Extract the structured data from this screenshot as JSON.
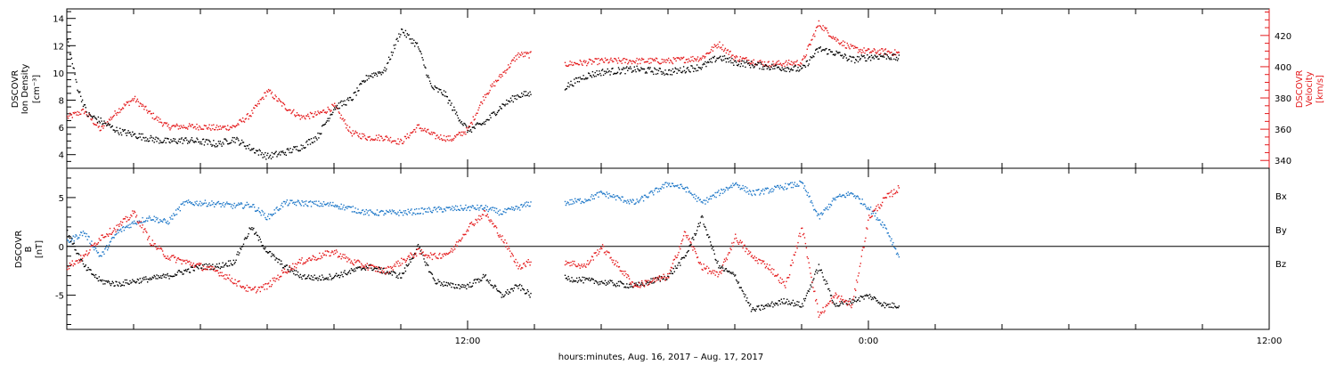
{
  "colors": {
    "black": "#000000",
    "red": "#e41a1c",
    "blue": "#1f78c8"
  },
  "xaxis": {
    "label": "hours:minutes, Aug. 16, 2017 – Aug. 17, 2017",
    "range_hours": [
      0,
      36
    ],
    "ticks": [
      {
        "h": 12,
        "label": "12:00"
      },
      {
        "h": 24,
        "label": "0:00"
      },
      {
        "h": 36,
        "label": "12:00"
      }
    ]
  },
  "chart_data": [
    {
      "type": "scatter",
      "panel": "top",
      "left_axis": {
        "label_lines": [
          "DSCOVR",
          "Ion Density",
          "[cm⁻³]"
        ],
        "range": [
          3,
          14.7
        ],
        "tick_labels": [
          "4",
          "6",
          "8",
          "10",
          "12",
          "14"
        ]
      },
      "right_axis": {
        "label_lines": [
          "DSCOVR",
          "Velocity",
          "[km/s]"
        ],
        "range": [
          335,
          437
        ],
        "tick_labels": [
          "340",
          "360",
          "380",
          "400",
          "420"
        ]
      },
      "gap_hours": [
        13.9,
        14.9
      ],
      "data_end_hours": 24.9,
      "series": [
        {
          "axis": "left",
          "color": "black",
          "x": [
            0,
            0.3,
            0.6,
            1.0,
            1.5,
            2.0,
            2.5,
            3.0,
            3.5,
            4.0,
            4.5,
            5.0,
            5.5,
            6.0,
            6.5,
            7.0,
            7.5,
            8.0,
            8.5,
            9.0,
            9.5,
            10.0,
            10.5,
            10.9,
            11.3,
            11.6,
            12.0,
            12.5,
            13.0,
            13.5,
            13.9,
            14.9,
            15.5,
            16.0,
            17.0,
            18.0,
            19.0,
            19.5,
            20.0,
            21.0,
            22.0,
            22.5,
            23.0,
            23.5,
            24.0,
            24.5,
            24.9
          ],
          "y": [
            12.5,
            9,
            7,
            6.5,
            5.8,
            5.5,
            5.2,
            5.0,
            5.1,
            5.0,
            4.8,
            5.2,
            4.5,
            3.9,
            4.2,
            4.6,
            5.4,
            7.5,
            8.1,
            9.8,
            10.2,
            13.2,
            12.0,
            9.0,
            8.5,
            7.2,
            5.8,
            6.4,
            7.6,
            8.4,
            8.5,
            9.0,
            9.8,
            10.1,
            10.3,
            10.1,
            10.5,
            11.2,
            10.8,
            10.5,
            10.3,
            11.8,
            11.5,
            11.0,
            11.2,
            11.3,
            11.1
          ]
        },
        {
          "axis": "right",
          "color": "red",
          "x": [
            0,
            0.5,
            1.0,
            1.5,
            2.0,
            2.5,
            3.0,
            3.5,
            4.0,
            4.5,
            5.0,
            5.5,
            6.0,
            6.5,
            7.0,
            7.5,
            8.0,
            8.5,
            9.0,
            9.5,
            10.0,
            10.5,
            11.0,
            11.5,
            12.0,
            12.5,
            13.0,
            13.5,
            13.9,
            14.9,
            15.5,
            16.0,
            17.0,
            18.0,
            19.0,
            19.5,
            20.0,
            21.0,
            22.0,
            22.5,
            23.0,
            23.5,
            24.0,
            24.5,
            24.9
          ],
          "y": [
            368,
            372,
            360,
            372,
            380,
            370,
            362,
            362,
            362,
            361,
            362,
            370,
            385,
            375,
            368,
            370,
            375,
            358,
            355,
            355,
            352,
            362,
            356,
            354,
            360,
            382,
            395,
            408,
            408,
            402,
            403,
            404,
            404,
            404,
            406,
            415,
            406,
            402,
            403,
            428,
            418,
            412,
            410,
            410,
            409
          ]
        }
      ]
    },
    {
      "type": "scatter",
      "panel": "bottom",
      "left_axis": {
        "label_lines": [
          "DSCOVR",
          "B",
          "[nT]"
        ],
        "range": [
          -8.5,
          8
        ],
        "tick_labels": [
          "-5",
          "0",
          "5"
        ]
      },
      "zero_line": true,
      "gap_hours": [
        13.9,
        14.9
      ],
      "data_end_hours": 24.9,
      "legend": [
        "Bx",
        "By",
        "Bz"
      ],
      "series": [
        {
          "name": "Bx",
          "color": "black",
          "x": [
            0,
            0.5,
            1.0,
            1.5,
            2.0,
            3.0,
            4.0,
            4.5,
            5.0,
            5.5,
            6.0,
            6.5,
            7.0,
            7.5,
            8.0,
            8.5,
            9.0,
            9.5,
            10.0,
            10.5,
            11.0,
            11.5,
            12.0,
            12.5,
            13.0,
            13.5,
            13.9,
            14.9,
            16.0,
            17.0,
            18.0,
            18.5,
            19.0,
            19.5,
            20.0,
            20.5,
            21.0,
            21.5,
            22.0,
            22.5,
            23.0,
            23.5,
            24.0,
            24.5,
            24.9
          ],
          "y": [
            1.5,
            -2,
            -3.5,
            -3.8,
            -3.5,
            -3,
            -2,
            -2,
            -1.5,
            2,
            -0.5,
            -2,
            -3,
            -3.2,
            -3,
            -2.5,
            -2,
            -2.5,
            -3,
            0,
            -3.5,
            -4,
            -4,
            -3,
            -5,
            -4,
            -5,
            -3.2,
            -3.6,
            -4,
            -3,
            -1,
            3,
            -2,
            -3,
            -6.5,
            -6,
            -5.5,
            -6,
            -2,
            -6,
            -5.5,
            -5,
            -6,
            -6
          ]
        },
        {
          "name": "By",
          "color": "blue",
          "x": [
            0,
            0.5,
            1.0,
            1.5,
            2.0,
            2.5,
            3.0,
            3.5,
            4.0,
            4.5,
            5.0,
            5.5,
            6.0,
            6.5,
            7.0,
            8.0,
            9.0,
            10.0,
            11.0,
            12.0,
            12.5,
            13.0,
            13.5,
            13.9,
            14.9,
            15.5,
            16.0,
            17.0,
            18.0,
            18.5,
            19.0,
            19.5,
            20.0,
            20.5,
            21.0,
            21.5,
            22.0,
            22.5,
            23.0,
            23.5,
            24.0,
            24.5,
            24.9
          ],
          "y": [
            0.5,
            1.5,
            -1,
            1.5,
            2.5,
            3,
            2.5,
            4.5,
            4.5,
            4.4,
            4.2,
            4.3,
            3,
            4.5,
            4.5,
            4.3,
            3.5,
            3.5,
            3.8,
            4,
            4,
            3.5,
            4,
            4.5,
            4.5,
            4.8,
            5.5,
            4.5,
            6.5,
            6,
            4.5,
            5.5,
            6.5,
            5.5,
            5.8,
            6.2,
            6.5,
            3,
            5,
            5.5,
            4,
            2,
            -1
          ]
        },
        {
          "name": "Bz",
          "color": "red",
          "x": [
            0,
            0.5,
            1.0,
            1.5,
            2.0,
            2.5,
            3.0,
            3.5,
            4.0,
            4.5,
            5.0,
            5.5,
            6.0,
            6.5,
            7.0,
            7.5,
            8.0,
            8.5,
            9.0,
            9.5,
            10.0,
            10.5,
            11.0,
            11.5,
            12.0,
            12.5,
            13.0,
            13.5,
            13.9,
            14.9,
            15.5,
            16.0,
            17.0,
            17.5,
            18.0,
            18.5,
            19.0,
            19.5,
            20.0,
            20.5,
            21.0,
            21.5,
            22.0,
            22.5,
            23.0,
            23.5,
            24.0,
            24.5,
            24.9
          ],
          "y": [
            -2,
            -1,
            1,
            2,
            3.5,
            0.5,
            -1,
            -1.5,
            -2,
            -2.5,
            -3.5,
            -4.5,
            -4,
            -2.5,
            -1.5,
            -1,
            -0.5,
            -1.5,
            -2,
            -2.5,
            -1.5,
            -0.5,
            -1,
            -0.5,
            2,
            3.5,
            1,
            -2,
            -1.5,
            -1.5,
            -2,
            0,
            -4,
            -3.5,
            -3,
            1.5,
            -2,
            -3,
            1,
            -1,
            -2,
            -4,
            2,
            -7,
            -5,
            -6,
            3,
            5,
            6
          ]
        }
      ]
    }
  ]
}
